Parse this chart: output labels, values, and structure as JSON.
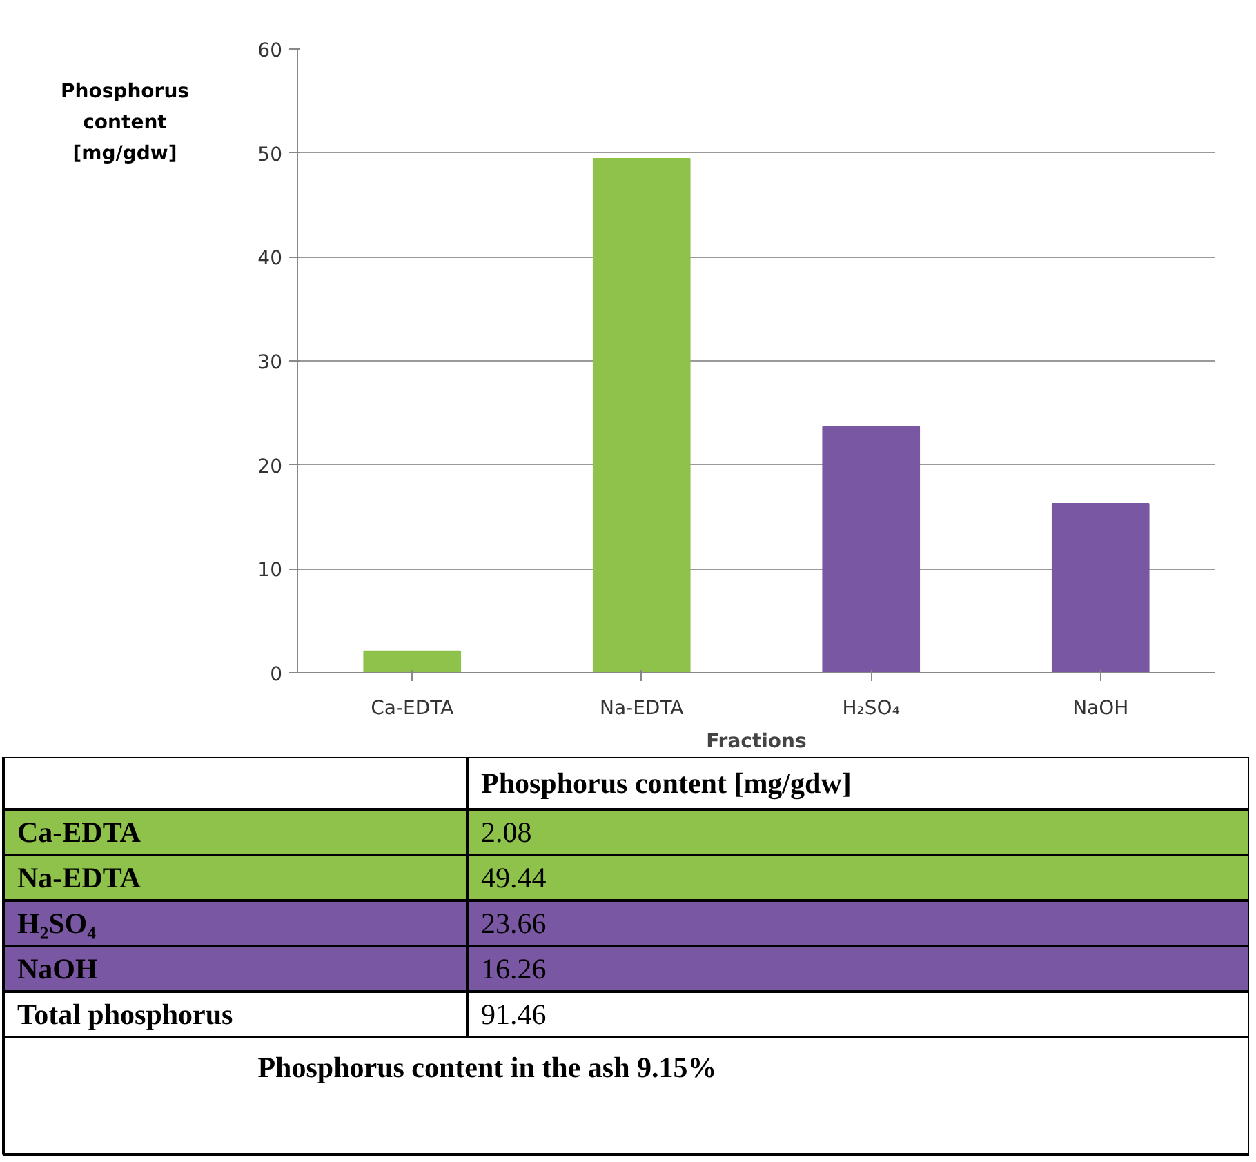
{
  "chart_data": {
    "type": "bar",
    "categories": [
      "Ca-EDTA",
      "Na-EDTA",
      "H₂SO₄",
      "NaOH"
    ],
    "values": [
      2.08,
      49.44,
      23.66,
      16.26
    ],
    "colors": [
      "#8fc24a",
      "#8fc24a",
      "#7a57a3",
      "#7a57a3"
    ],
    "ylabel": "Phosphorus content [mg/gdw]",
    "xlabel": "Fractions",
    "ylim": [
      0,
      60
    ],
    "yticks": [
      0,
      10,
      20,
      30,
      40,
      50,
      60
    ],
    "grid": "y",
    "annotations": [
      "Phosphorus content [mg/gdw]",
      "2.08",
      "49.44",
      "23.66",
      "16.26",
      "Total phosphorus",
      "91.46",
      "Phosphorus content in the ash 9.15%"
    ]
  }
}
